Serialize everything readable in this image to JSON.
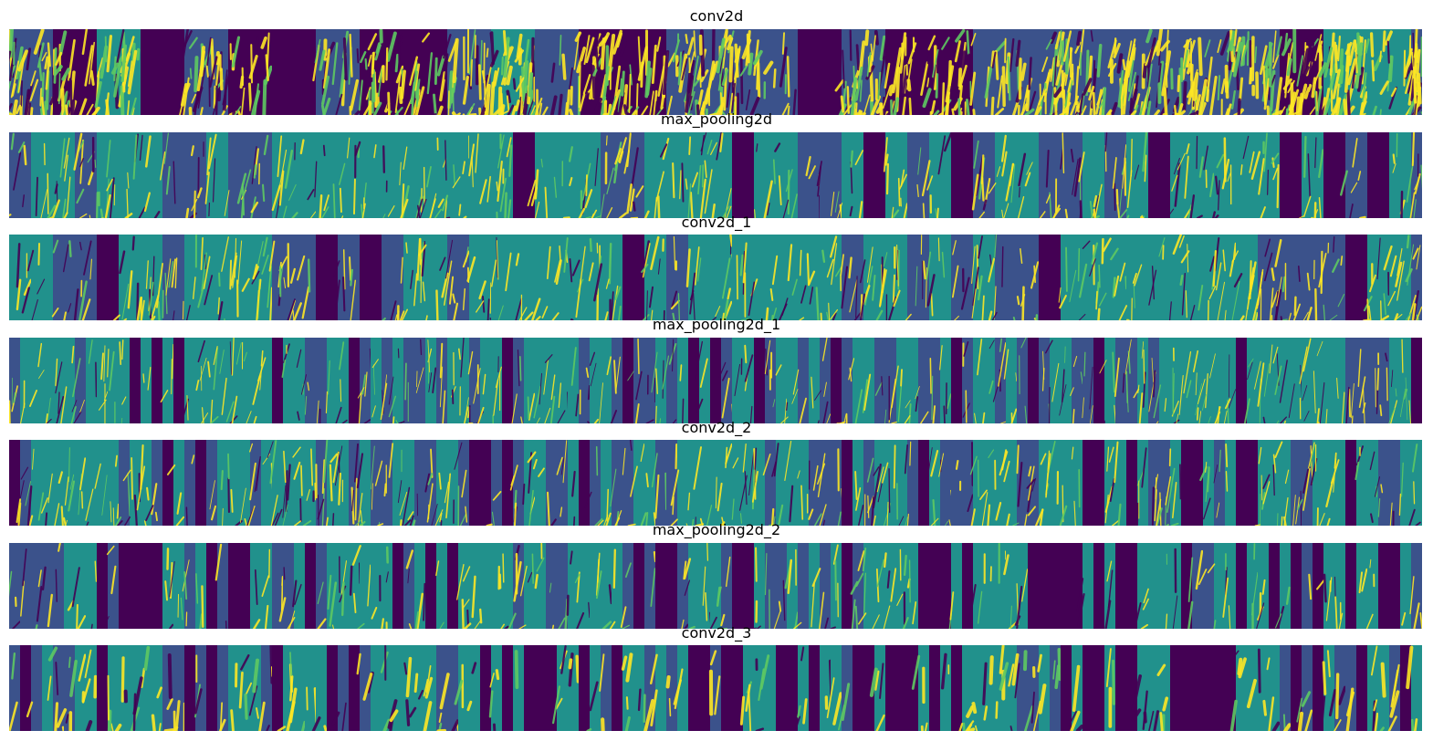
{
  "figure": {
    "colormap": {
      "name": "viridis",
      "low": "#440154",
      "mid_low": "#3b528b",
      "mid": "#21918c",
      "mid_high": "#5ec962",
      "high": "#fde725"
    },
    "layers": [
      {
        "title": "conv2d"
      },
      {
        "title": "max_pooling2d"
      },
      {
        "title": "conv2d_1"
      },
      {
        "title": "max_pooling2d_1"
      },
      {
        "title": "conv2d_2"
      },
      {
        "title": "max_pooling2d_2"
      },
      {
        "title": "conv2d_3"
      }
    ]
  }
}
